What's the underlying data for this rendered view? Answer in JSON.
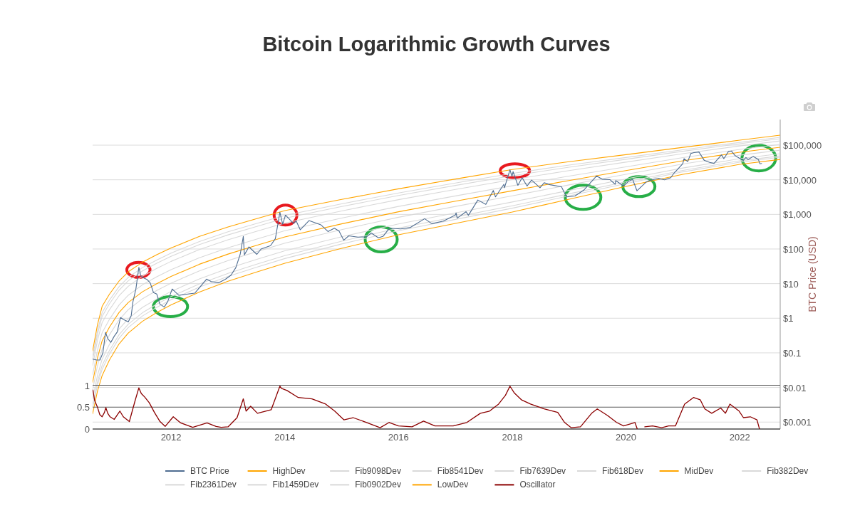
{
  "chart_data": [
    {
      "type": "line",
      "title": "Bitcoin Logarithmic Growth Curves",
      "ylabel": "BTC Price (USD)",
      "log": "y",
      "grid": "y",
      "legend": "bottom",
      "tick_labels": "y",
      "xlim": [
        "2010-08-15",
        "2022-09-18"
      ],
      "ylim": [
        0.00063,
        550000
      ],
      "yticks": [
        {
          "value": 0.001,
          "label": "$0.001"
        },
        {
          "value": 0.01,
          "label": "$0.01"
        },
        {
          "value": 0.1,
          "label": "$0.1"
        },
        {
          "value": 1,
          "label": "$1"
        },
        {
          "value": 10,
          "label": "$10"
        },
        {
          "value": 100,
          "label": "$100"
        },
        {
          "value": 1000,
          "label": "$1,000"
        },
        {
          "value": 10000,
          "label": "$10,000"
        },
        {
          "value": 100000,
          "label": "$100,000"
        }
      ],
      "x": [
        "2010-08-15",
        "2010-09-15",
        "2010-10-15",
        "2010-12-01",
        "2011-02-01",
        "2011-04-01",
        "2011-07-01",
        "2011-10-01",
        "2012-01-01",
        "2012-07-01",
        "2013-01-01",
        "2013-07-01",
        "2014-01-01",
        "2015-01-01",
        "2016-01-01",
        "2017-01-01",
        "2018-01-01",
        "2019-01-01",
        "2020-01-01",
        "2021-01-01",
        "2022-01-01",
        "2022-09-18"
      ],
      "series": [
        {
          "name": "BTC Price",
          "color": "#4f6d91",
          "x": [
            "2010-08-15",
            "2010-09-10",
            "2010-10-01",
            "2010-10-20",
            "2010-11-06",
            "2010-11-20",
            "2010-12-10",
            "2010-12-31",
            "2011-01-20",
            "2011-02-10",
            "2011-03-01",
            "2011-04-01",
            "2011-04-20",
            "2011-05-01",
            "2011-05-20",
            "2011-06-08",
            "2011-06-20",
            "2011-07-10",
            "2011-08-01",
            "2011-08-20",
            "2011-09-10",
            "2011-10-01",
            "2011-10-20",
            "2011-11-18",
            "2011-12-10",
            "2012-01-08",
            "2012-02-20",
            "2012-04-01",
            "2012-06-01",
            "2012-08-16",
            "2012-09-15",
            "2012-11-01",
            "2012-12-15",
            "2013-01-20",
            "2013-02-20",
            "2013-03-20",
            "2013-04-09",
            "2013-04-16",
            "2013-05-15",
            "2013-07-05",
            "2013-08-01",
            "2013-10-01",
            "2013-11-01",
            "2013-11-30",
            "2013-12-18",
            "2014-01-05",
            "2014-02-25",
            "2014-03-15",
            "2014-04-10",
            "2014-06-05",
            "2014-08-20",
            "2014-10-05",
            "2014-11-15",
            "2014-12-15",
            "2015-01-14",
            "2015-02-15",
            "2015-04-15",
            "2015-06-10",
            "2015-07-10",
            "2015-08-25",
            "2015-09-25",
            "2015-11-04",
            "2016-01-15",
            "2016-03-15",
            "2016-06-17",
            "2016-08-02",
            "2016-10-15",
            "2016-12-31",
            "2017-01-05",
            "2017-01-12",
            "2017-03-10",
            "2017-03-25",
            "2017-05-25",
            "2017-07-15",
            "2017-09-01",
            "2017-09-15",
            "2017-11-08",
            "2017-11-12",
            "2017-12-17",
            "2017-12-30",
            "2018-01-06",
            "2018-02-06",
            "2018-03-05",
            "2018-04-06",
            "2018-05-05",
            "2018-06-28",
            "2018-07-25",
            "2018-09-01",
            "2018-11-13",
            "2018-12-15",
            "2019-02-07",
            "2019-04-05",
            "2019-05-15",
            "2019-06-26",
            "2019-08-01",
            "2019-09-20",
            "2019-10-24",
            "2019-10-27",
            "2019-12-18",
            "2020-01-15",
            "2020-02-13",
            "2020-03-12",
            "2020-05-10",
            "2020-06-10",
            "2020-07-27",
            "2020-09-05",
            "2020-10-15",
            "2020-11-05",
            "2020-12-31",
            "2021-01-08",
            "2021-02-01",
            "2021-02-21",
            "2021-03-13",
            "2021-04-14",
            "2021-05-19",
            "2021-06-22",
            "2021-07-20",
            "2021-09-06",
            "2021-09-21",
            "2021-10-20",
            "2021-11-09",
            "2021-12-04",
            "2022-01-24",
            "2022-02-10",
            "2022-02-24",
            "2022-03-28",
            "2022-05-01",
            "2022-05-11",
            "2022-05-22"
          ],
          "values": [
            0.066,
            0.062,
            0.062,
            0.1,
            0.39,
            0.26,
            0.2,
            0.3,
            0.4,
            1.05,
            0.92,
            0.78,
            1.2,
            3.0,
            7.0,
            29.6,
            17,
            14.5,
            13,
            10.5,
            5.5,
            5.0,
            2.6,
            2.1,
            3.0,
            7.0,
            4.6,
            4.9,
            5.3,
            13.5,
            11.5,
            10.6,
            13.4,
            17.5,
            29,
            70,
            230,
            68,
            115,
            70,
            100,
            125,
            200,
            1150,
            520,
            950,
            550,
            640,
            360,
            660,
            500,
            320,
            400,
            330,
            180,
            240,
            220,
            225,
            290,
            210,
            235,
            400,
            380,
            415,
            750,
            540,
            640,
            960,
            1100,
            780,
            1200,
            940,
            2600,
            1950,
            4900,
            3200,
            7400,
            5900,
            19500,
            12600,
            17200,
            6900,
            11500,
            6600,
            9800,
            5900,
            8200,
            7200,
            6300,
            3200,
            3400,
            5000,
            7900,
            12900,
            10400,
            10100,
            7400,
            9500,
            6600,
            8800,
            10300,
            4800,
            8600,
            9700,
            11000,
            10000,
            11500,
            15600,
            29000,
            40700,
            33500,
            57500,
            61000,
            63500,
            36000,
            31700,
            29800,
            52600,
            40600,
            65000,
            67500,
            49000,
            36300,
            44000,
            38300,
            47300,
            38500,
            29000,
            29500
          ]
        },
        {
          "name": "HighDev",
          "color": "#ffa500",
          "values": [
            0.113,
            0.644,
            2.21,
            4.94,
            11.9,
            21.9,
            41.4,
            68.1,
            107,
            231,
            435,
            745,
            1290,
            2710,
            5480,
            10500,
            19800,
            33300,
            53200,
            86500,
            139000,
            194000
          ]
        },
        {
          "name": "Fib9098Dev",
          "color": "#d9d9d9",
          "values": [
            0.0778,
            0.433,
            1.46,
            3.33,
            8.19,
            15.2,
            29.0,
            48.1,
            76.2,
            165,
            314,
            541,
            937,
            2020,
            4160,
            8080,
            15300,
            26600,
            44000,
            73600,
            120000,
            168000
          ]
        },
        {
          "name": "Fib8541Dev",
          "color": "#d9d9d9",
          "values": [
            0.0617,
            0.338,
            1.13,
            2.61,
            6.48,
            12.1,
            23.3,
            38.9,
            61.7,
            134,
            256,
            444,
            771,
            1690,
            3510,
            6850,
            13100,
            23100,
            39100,
            66600,
            110000,
            153000
          ]
        },
        {
          "name": "Fib7639Dev",
          "color": "#d9d9d9",
          "values": [
            0.0423,
            0.227,
            0.745,
            1.76,
            4.45,
            8.36,
            16.4,
            27.5,
            43.9,
            96.3,
            185,
            322,
            562,
            1260,
            2660,
            5250,
            10100,
            18400,
            32300,
            56600,
            95100,
            132000
          ]
        },
        {
          "name": "Fib618Dev",
          "color": "#d9d9d9",
          "values": [
            0.023,
            0.119,
            0.38,
            0.929,
            2.42,
            4.62,
            9.22,
            15.7,
            25.2,
            56.1,
            109,
            192,
            337,
            782,
            1700,
            3410,
            6710,
            12800,
            23700,
            43600,
            75200,
            105000
          ]
        },
        {
          "name": "MidDev",
          "color": "#ffa500",
          "values": [
            0.014,
            0.0707,
            0.221,
            0.555,
            1.47,
            2.85,
            5.8,
            9.97,
            16.1,
            36.3,
            71.3,
            126,
            223,
            533,
            1190,
            2400,
            4810,
            9540,
            18500,
            35200,
            62200,
            86600
          ]
        },
        {
          "name": "Fib382Dev",
          "color": "#d9d9d9",
          "values": [
            0.00857,
            0.042,
            0.128,
            0.331,
            0.9,
            1.77,
            3.65,
            6.33,
            10.3,
            23.4,
            46.5,
            83.1,
            148,
            363,
            827,
            1700,
            3440,
            7100,
            14400,
            28500,
            51400,
            71600
          ]
        },
        {
          "name": "Fib2361Dev",
          "color": "#d9d9d9",
          "values": [
            0.00466,
            0.022,
            0.0653,
            0.175,
            0.489,
            0.974,
            2.06,
            3.61,
            5.94,
            13.7,
            27.5,
            49.5,
            88.5,
            226,
            529,
            1100,
            2280,
            4930,
            10600,
            21900,
            40600,
            56600
          ]
        },
        {
          "name": "Fib1459Dev",
          "color": "#d9d9d9",
          "values": [
            0.00319,
            0.0148,
            0.0431,
            0.118,
            0.335,
            0.675,
            1.44,
            2.56,
            4.23,
            9.78,
            19.8,
            36.0,
            64.5,
            168,
            402,
            844,
            1770,
            3940,
            8730,
            18700,
            35200,
            49000
          ]
        },
        {
          "name": "Fib0902Dev",
          "color": "#d9d9d9",
          "values": [
            0.00253,
            0.0116,
            0.0333,
            0.0923,
            0.265,
            0.538,
            1.16,
            2.06,
            3.42,
            7.96,
            16.2,
            29.5,
            53.1,
            140,
            339,
            716,
            1510,
            3430,
            7760,
            16900,
            32100,
            44800
          ]
        },
        {
          "name": "LowDev",
          "color": "#ffa500",
          "values": [
            0.00173,
            0.00776,
            0.022,
            0.0622,
            0.182,
            0.372,
            0.813,
            1.46,
            2.43,
            5.7,
            11.7,
            21.4,
            38.7,
            105,
            257,
            548,
            1170,
            2740,
            6410,
            14400,
            27800,
            38700
          ]
        }
      ]
    },
    {
      "type": "line",
      "grid": "y",
      "legend": "bottom",
      "xlim": [
        "2010-08-15",
        "2022-09-18"
      ],
      "xticks": [
        "2012",
        "2014",
        "2016",
        "2018",
        "2020",
        "2022"
      ],
      "ylim": [
        0,
        1
      ],
      "yticks": [
        0,
        0.5,
        1
      ],
      "series": [
        {
          "name": "Oscillator",
          "color": "#8b0000",
          "x": [
            "2010-08-17",
            "2010-08-28",
            "2010-09-16",
            "2010-09-30",
            "2010-10-15",
            "2010-10-30",
            "2010-11-08",
            "2010-11-20",
            "2010-12-05",
            "2011-01-01",
            "2011-02-06",
            "2011-02-28",
            "2011-04-08",
            "2011-05-15",
            "2011-06-08",
            "2011-06-24",
            "2011-07-16",
            "2011-08-14",
            "2011-09-16",
            "2011-10-22",
            "2011-11-24",
            "2012-01-15",
            "2012-03-03",
            "2012-05-19",
            "2012-08-19",
            "2012-10-16",
            "2012-11-18",
            "2013-01-01",
            "2013-02-28",
            "2013-04-09",
            "2013-04-27",
            "2013-05-26",
            "2013-07-09",
            "2013-10-05",
            "2013-11-30",
            "2013-12-10",
            "2014-01-15",
            "2014-03-28",
            "2014-06-24",
            "2014-09-20",
            "2014-11-17",
            "2015-01-15",
            "2015-03-15",
            "2015-06-10",
            "2015-09-05",
            "2015-11-02",
            "2016-01-01",
            "2016-03-28",
            "2016-06-10",
            "2016-08-22",
            "2016-12-17",
            "2017-03-15",
            "2017-06-10",
            "2017-08-08",
            "2017-10-05",
            "2017-11-18",
            "2017-12-17",
            "2018-01-15",
            "2018-02-28",
            "2018-04-28",
            "2018-07-24",
            "2018-10-20",
            "2018-12-03",
            "2019-01-15",
            "2019-03-15",
            "2019-05-26",
            "2019-07-01",
            "2019-09-05",
            "2019-11-02",
            "2019-12-17",
            "2020-02-28",
            "2020-03-14",
            "2020-03-28",
            "2020-05-01",
            "2020-06-20",
            "2020-08-18",
            "2020-10-01",
            "2020-11-14",
            "2021-01-12",
            "2021-03-10",
            "2021-04-22",
            "2021-05-22",
            "2021-07-05",
            "2021-09-01",
            "2021-10-01",
            "2021-10-30",
            "2021-12-28",
            "2022-01-25",
            "2022-03-10",
            "2022-04-22",
            "2022-05-08"
          ],
          "values": [
            0.89,
            0.65,
            0.49,
            0.33,
            0.28,
            0.38,
            0.49,
            0.36,
            0.28,
            0.22,
            0.41,
            0.28,
            0.17,
            0.65,
            0.94,
            0.81,
            0.73,
            0.6,
            0.38,
            0.17,
            0.06,
            0.28,
            0.14,
            0.04,
            0.14,
            0.06,
            0.04,
            0.05,
            0.26,
            0.69,
            0.41,
            0.52,
            0.36,
            0.44,
            0.98,
            0.93,
            0.88,
            0.72,
            0.69,
            0.57,
            0.41,
            0.21,
            0.26,
            0.15,
            0.03,
            0.15,
            0.07,
            0.05,
            0.18,
            0.07,
            0.07,
            0.15,
            0.36,
            0.41,
            0.57,
            0.77,
            0.98,
            0.82,
            0.67,
            0.57,
            0.46,
            0.38,
            0.15,
            0.03,
            0.05,
            0.36,
            0.46,
            0.31,
            0.15,
            0.07,
            0.15,
            0,
            null,
            0.05,
            0.07,
            0.03,
            0.07,
            0.07,
            0.57,
            0.72,
            0.67,
            0.46,
            0.36,
            0.48,
            0.36,
            0.57,
            0.41,
            0.26,
            0.28,
            0.21,
            0
          ]
        }
      ]
    }
  ]
}
